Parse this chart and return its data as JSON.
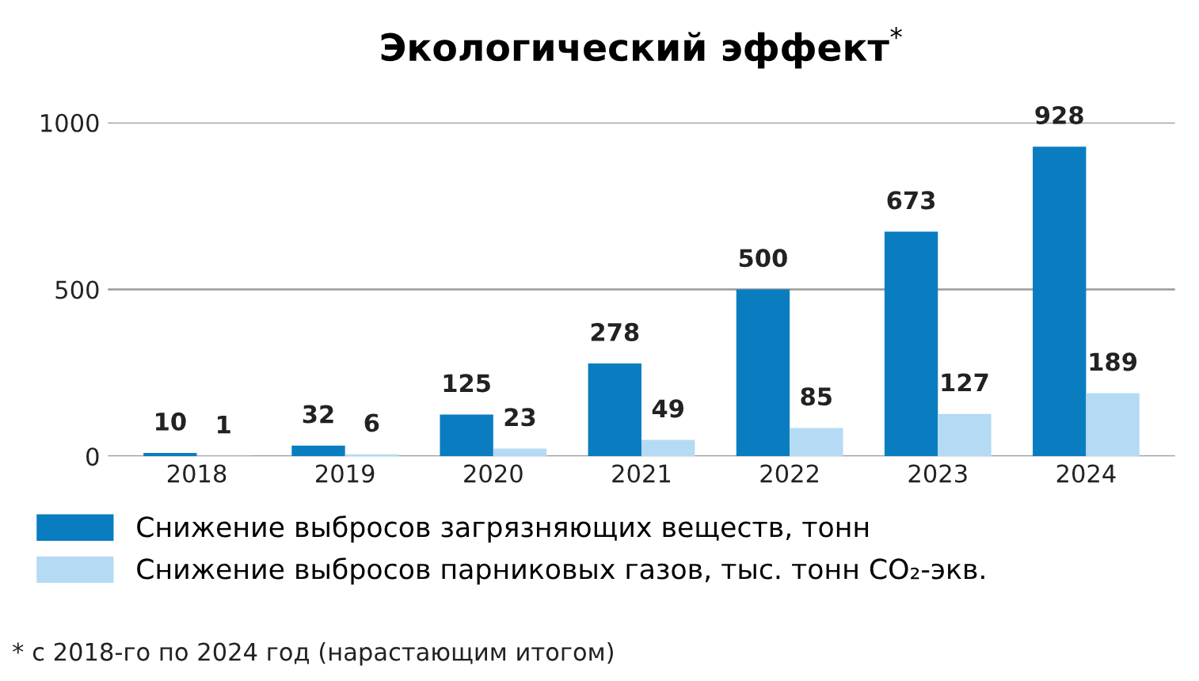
{
  "chart_data": {
    "type": "bar",
    "title": "Экологический эффект$^{*}$",
    "categories": [
      "2018",
      "2019",
      "2020",
      "2021",
      "2022",
      "2023",
      "2024"
    ],
    "series": [
      {
        "name": "Снижение выбросов загрязняющих веществ, тонн",
        "color": "#0a7dc0",
        "values": [
          10,
          32,
          125,
          278,
          500,
          673,
          928
        ]
      },
      {
        "name": "Снижение выбросов парниковых газов, тыс. тонн CO₂-экв.",
        "color": "#b5daf3",
        "values": [
          1,
          6,
          23,
          49,
          85,
          127,
          189
        ]
      }
    ],
    "ylim": [
      0,
      1000
    ],
    "yticks": [
      0,
      500,
      1000
    ],
    "grid": "y",
    "legend": "bottom",
    "data_labels": true,
    "annotations": [
      "* с 2018-го по 2024 год (нарастающим итогом)"
    ]
  }
}
